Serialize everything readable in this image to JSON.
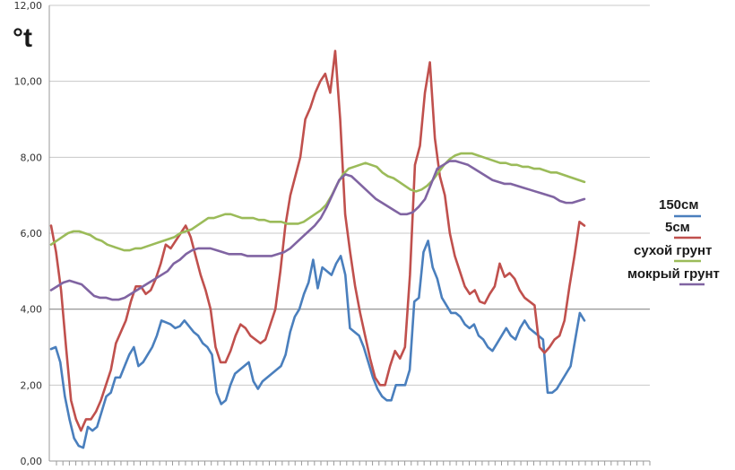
{
  "chart_data": {
    "type": "line",
    "ylabel": "°t",
    "ylim": [
      0,
      12
    ],
    "y_ticks": [
      "0,00",
      "2,00",
      "4,00",
      "6,00",
      "8,00",
      "10,00",
      "12,00"
    ],
    "grid": "horizontal",
    "legend_position": "right",
    "series": [
      {
        "name": "150см",
        "color": "#4a7fbd",
        "values": [
          2.95,
          3.0,
          2.6,
          1.7,
          1.1,
          0.6,
          0.4,
          0.35,
          0.9,
          0.8,
          0.9,
          1.3,
          1.7,
          1.8,
          2.2,
          2.2,
          2.5,
          2.8,
          3.0,
          2.5,
          2.6,
          2.8,
          3.0,
          3.3,
          3.7,
          3.65,
          3.6,
          3.5,
          3.55,
          3.7,
          3.55,
          3.4,
          3.3,
          3.1,
          3.0,
          2.8,
          1.8,
          1.5,
          1.6,
          2.0,
          2.3,
          2.4,
          2.5,
          2.6,
          2.1,
          1.9,
          2.1,
          2.2,
          2.3,
          2.4,
          2.5,
          2.8,
          3.4,
          3.8,
          4.0,
          4.4,
          4.7,
          5.3,
          4.55,
          5.1,
          5.0,
          4.9,
          5.2,
          5.4,
          4.9,
          3.5,
          3.4,
          3.3,
          3.0,
          2.6,
          2.2,
          1.9,
          1.7,
          1.6,
          1.6,
          2.0,
          2.0,
          2.0,
          2.4,
          4.2,
          4.3,
          5.5,
          5.8,
          5.1,
          4.8,
          4.3,
          4.1,
          3.9,
          3.9,
          3.8,
          3.6,
          3.5,
          3.6,
          3.3,
          3.2,
          3.0,
          2.9,
          3.1,
          3.3,
          3.5,
          3.3,
          3.2,
          3.5,
          3.7,
          3.5,
          3.4,
          3.3,
          3.2,
          1.8,
          1.8,
          1.9,
          2.1,
          2.3,
          2.5,
          3.2,
          3.9,
          3.7
        ]
      },
      {
        "name": "5см",
        "color": "#c0504d",
        "values": [
          6.2,
          5.5,
          4.5,
          3.0,
          1.6,
          1.1,
          0.8,
          1.1,
          1.1,
          1.3,
          1.6,
          2.0,
          2.4,
          3.1,
          3.4,
          3.7,
          4.2,
          4.6,
          4.6,
          4.4,
          4.5,
          4.8,
          5.2,
          5.7,
          5.6,
          5.8,
          6.0,
          6.2,
          5.9,
          5.4,
          4.9,
          4.5,
          4.0,
          3.0,
          2.6,
          2.6,
          2.9,
          3.3,
          3.6,
          3.5,
          3.3,
          3.2,
          3.1,
          3.2,
          3.6,
          4.0,
          5.0,
          6.2,
          7.0,
          7.5,
          8.0,
          9.0,
          9.3,
          9.7,
          10.0,
          10.2,
          9.7,
          10.8,
          9.0,
          6.5,
          5.5,
          4.6,
          3.9,
          3.3,
          2.7,
          2.2,
          2.0,
          2.0,
          2.5,
          2.9,
          2.7,
          3.0,
          4.9,
          7.8,
          8.3,
          9.7,
          10.5,
          8.5,
          7.5,
          7.0,
          6.0,
          5.4,
          5.0,
          4.6,
          4.4,
          4.5,
          4.2,
          4.15,
          4.4,
          4.6,
          5.2,
          4.85,
          4.95,
          4.8,
          4.5,
          4.3,
          4.2,
          4.1,
          3.0,
          2.85,
          3.0,
          3.2,
          3.3,
          3.7,
          4.6,
          5.4,
          6.3,
          6.2
        ]
      },
      {
        "name": "сухой грунт",
        "color": "#9bbb59",
        "values": [
          5.7,
          5.8,
          5.9,
          6.0,
          6.05,
          6.05,
          6.0,
          5.95,
          5.85,
          5.8,
          5.7,
          5.65,
          5.6,
          5.55,
          5.55,
          5.6,
          5.6,
          5.65,
          5.7,
          5.75,
          5.8,
          5.85,
          5.9,
          6.0,
          6.05,
          6.1,
          6.2,
          6.3,
          6.4,
          6.4,
          6.45,
          6.5,
          6.5,
          6.45,
          6.4,
          6.4,
          6.4,
          6.35,
          6.35,
          6.3,
          6.3,
          6.3,
          6.25,
          6.25,
          6.25,
          6.3,
          6.4,
          6.5,
          6.6,
          6.75,
          7.0,
          7.3,
          7.55,
          7.7,
          7.75,
          7.8,
          7.85,
          7.8,
          7.75,
          7.6,
          7.5,
          7.45,
          7.35,
          7.25,
          7.15,
          7.1,
          7.15,
          7.25,
          7.4,
          7.6,
          7.8,
          7.95,
          8.05,
          8.1,
          8.1,
          8.1,
          8.05,
          8.0,
          7.95,
          7.9,
          7.85,
          7.85,
          7.8,
          7.8,
          7.75,
          7.75,
          7.7,
          7.7,
          7.65,
          7.6,
          7.6,
          7.55,
          7.5,
          7.45,
          7.4,
          7.35
        ]
      },
      {
        "name": "мокрый грунт",
        "color": "#8064a2",
        "values": [
          4.5,
          4.6,
          4.7,
          4.75,
          4.7,
          4.65,
          4.5,
          4.35,
          4.3,
          4.3,
          4.25,
          4.25,
          4.3,
          4.4,
          4.5,
          4.6,
          4.7,
          4.8,
          4.9,
          5.0,
          5.2,
          5.3,
          5.45,
          5.55,
          5.6,
          5.6,
          5.6,
          5.55,
          5.5,
          5.45,
          5.45,
          5.45,
          5.4,
          5.4,
          5.4,
          5.4,
          5.4,
          5.45,
          5.5,
          5.6,
          5.75,
          5.9,
          6.05,
          6.2,
          6.4,
          6.7,
          7.05,
          7.4,
          7.55,
          7.5,
          7.35,
          7.2,
          7.05,
          6.9,
          6.8,
          6.7,
          6.6,
          6.5,
          6.5,
          6.55,
          6.7,
          6.9,
          7.3,
          7.7,
          7.8,
          7.9,
          7.9,
          7.85,
          7.8,
          7.7,
          7.6,
          7.5,
          7.4,
          7.35,
          7.3,
          7.3,
          7.25,
          7.2,
          7.15,
          7.1,
          7.05,
          7.0,
          6.95,
          6.85,
          6.8,
          6.8,
          6.85,
          6.9
        ]
      }
    ]
  }
}
